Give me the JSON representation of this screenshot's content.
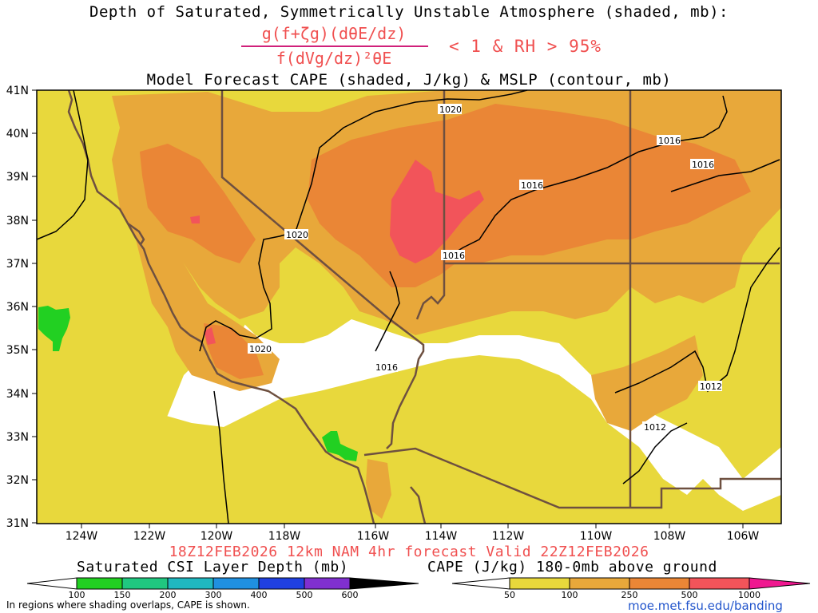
{
  "title": {
    "line1": "Depth of Saturated, Symmetrically Unstable Atmosphere (shaded, mb):",
    "numerator": "g(f+ζg)(dθE/dz)",
    "denominator": "f(dVg/dz)²θE",
    "condition": "< 1 & RH > 95%",
    "line3": "Model Forecast CAPE (shaded, J/kg) & MSLP (contour, mb)"
  },
  "valid_time": "18Z12FEB2026 12km NAM 4hr forecast Valid 22Z12FEB2026",
  "map": {
    "lat_labels": [
      "41N",
      "40N",
      "39N",
      "38N",
      "37N",
      "36N",
      "35N",
      "34N",
      "33N",
      "32N",
      "31N"
    ],
    "lon_labels": [
      "124W",
      "122W",
      "120W",
      "118W",
      "116W",
      "114W",
      "112W",
      "110W",
      "108W",
      "106W"
    ],
    "isobar_labels": [
      "1020",
      "1020",
      "1020",
      "1016",
      "1016",
      "1016",
      "1016",
      "1016",
      "1012",
      "1012"
    ],
    "colors": {
      "cape_50": "#e8d83c",
      "cape_100": "#e8a83a",
      "cape_250": "#ea8636",
      "cape_500": "#f2545a",
      "csi_100": "#22d022",
      "border": "#6e5040"
    }
  },
  "legend_csi": {
    "title": "Saturated CSI Layer Depth (mb)",
    "ticks": [
      "100",
      "150",
      "200",
      "300",
      "400",
      "500",
      "600"
    ],
    "colors": [
      "#ffffff",
      "#22d022",
      "#20c880",
      "#20b8c0",
      "#2090e0",
      "#2040e0",
      "#8030d0",
      "#000000"
    ]
  },
  "legend_cape": {
    "title": "CAPE (J/kg) 180-0mb above ground",
    "ticks": [
      "50",
      "100",
      "250",
      "500",
      "1000"
    ],
    "colors": [
      "#ffffff",
      "#e8d83c",
      "#e8a83a",
      "#ea8636",
      "#f2545a",
      "#f01890"
    ]
  },
  "footnote": "In regions where shading overlaps, CAPE is shown.",
  "credit": "moe.met.fsu.edu/banding"
}
